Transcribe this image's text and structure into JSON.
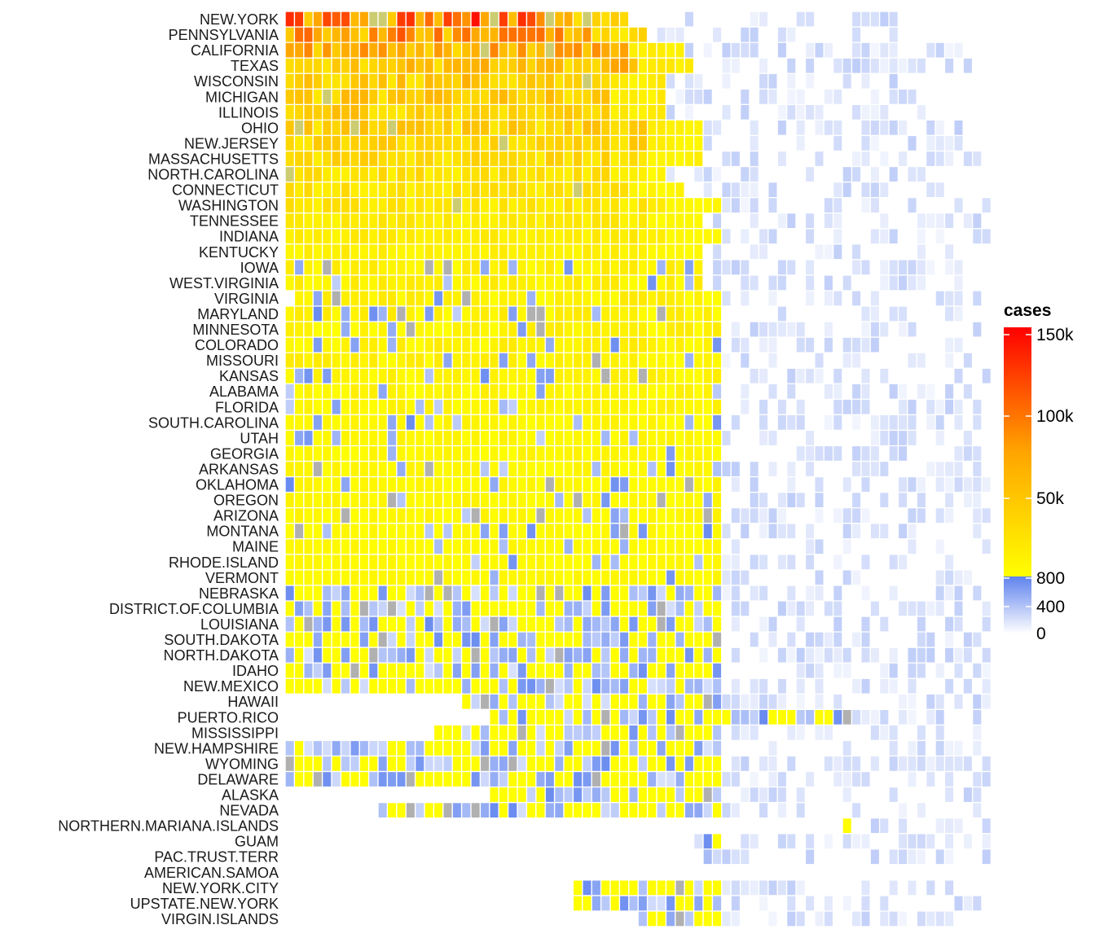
{
  "chart_data": {
    "type": "heatmap",
    "title": "",
    "xlabel": "",
    "ylabel": "",
    "grid": false,
    "legend_position": "right",
    "columns": 76,
    "colors": {
      "empty": "#ffffff",
      "zero": "#ffffff",
      "low": "#6a8cf0",
      "high_start": "#ffff00",
      "mid": "#ffa500",
      "high_end": "#ff0000",
      "grey": "#b0b0b0",
      "tile_border": "#ffffff"
    },
    "legend": {
      "title": "cases",
      "ticks": [
        {
          "label": "150k",
          "value": 150000
        },
        {
          "label": "100k",
          "value": 100000
        },
        {
          "label": "50k",
          "value": 50000
        },
        {
          "label": "800",
          "value": 800
        },
        {
          "label": "400",
          "value": 400
        },
        {
          "label": "0",
          "value": 0
        }
      ]
    },
    "rows": [
      {
        "state": "NEW.YORK",
        "start": 0,
        "end": 36,
        "level": 78
      },
      {
        "state": "PENNSYLVANIA",
        "start": 0,
        "end": 38,
        "level": 60
      },
      {
        "state": "CALIFORNIA",
        "start": 0,
        "end": 42,
        "level": 52
      },
      {
        "state": "TEXAS",
        "start": 0,
        "end": 43,
        "level": 42
      },
      {
        "state": "WISCONSIN",
        "start": 0,
        "end": 40,
        "level": 36
      },
      {
        "state": "MICHIGAN",
        "start": 0,
        "end": 40,
        "level": 34
      },
      {
        "state": "ILLINOIS",
        "start": 0,
        "end": 40,
        "level": 32
      },
      {
        "state": "OHIO",
        "start": 0,
        "end": 44,
        "level": 30
      },
      {
        "state": "NEW.JERSEY",
        "start": 0,
        "end": 44,
        "level": 26
      },
      {
        "state": "MASSACHUSETTS",
        "start": 0,
        "end": 44,
        "level": 24
      },
      {
        "state": "NORTH.CAROLINA",
        "start": 0,
        "end": 40,
        "level": 20
      },
      {
        "state": "CONNECTICUT",
        "start": 0,
        "end": 42,
        "level": 18
      },
      {
        "state": "WASHINGTON",
        "start": 0,
        "end": 46,
        "level": 16
      },
      {
        "state": "TENNESSEE",
        "start": 0,
        "end": 44,
        "level": 14
      },
      {
        "state": "INDIANA",
        "start": 0,
        "end": 46,
        "level": 12
      },
      {
        "state": "KENTUCKY",
        "start": 0,
        "end": 44,
        "level": 10
      },
      {
        "state": "IOWA",
        "start": 0,
        "end": 44,
        "level": 8
      },
      {
        "state": "WEST.VIRGINIA",
        "start": 0,
        "end": 44,
        "level": 8
      },
      {
        "state": "VIRGINIA",
        "start": 1,
        "end": 46,
        "level": 7
      },
      {
        "state": "MARYLAND",
        "start": 0,
        "end": 46,
        "level": 7
      },
      {
        "state": "MINNESOTA",
        "start": 0,
        "end": 46,
        "level": 6
      },
      {
        "state": "COLORADO",
        "start": 0,
        "end": 46,
        "level": 6
      },
      {
        "state": "MISSOURI",
        "start": 0,
        "end": 46,
        "level": 6
      },
      {
        "state": "KANSAS",
        "start": 0,
        "end": 46,
        "level": 5
      },
      {
        "state": "ALABAMA",
        "start": 0,
        "end": 46,
        "level": 5
      },
      {
        "state": "FLORIDA",
        "start": 0,
        "end": 46,
        "level": 5
      },
      {
        "state": "SOUTH.CAROLINA",
        "start": 0,
        "end": 46,
        "level": 4
      },
      {
        "state": "UTAH",
        "start": 0,
        "end": 46,
        "level": 4
      },
      {
        "state": "GEORGIA",
        "start": 0,
        "end": 46,
        "level": 4
      },
      {
        "state": "ARKANSAS",
        "start": 0,
        "end": 46,
        "level": 4
      },
      {
        "state": "OKLAHOMA",
        "start": 0,
        "end": 46,
        "level": 4
      },
      {
        "state": "OREGON",
        "start": 0,
        "end": 46,
        "level": 4
      },
      {
        "state": "ARIZONA",
        "start": 0,
        "end": 46,
        "level": 4
      },
      {
        "state": "MONTANA",
        "start": 0,
        "end": 46,
        "level": 3
      },
      {
        "state": "MAINE",
        "start": 0,
        "end": 46,
        "level": 3
      },
      {
        "state": "RHODE.ISLAND",
        "start": 0,
        "end": 46,
        "level": 3
      },
      {
        "state": "VERMONT",
        "start": 0,
        "end": 46,
        "level": 3
      },
      {
        "state": "NEBRASKA",
        "start": 0,
        "end": 46,
        "level": 2
      },
      {
        "state": "DISTRICT.OF.COLUMBIA",
        "start": 0,
        "end": 46,
        "level": 2
      },
      {
        "state": "LOUISIANA",
        "start": 0,
        "end": 46,
        "level": 2
      },
      {
        "state": "SOUTH.DAKOTA",
        "start": 0,
        "end": 46,
        "level": 2
      },
      {
        "state": "NORTH.DAKOTA",
        "start": 0,
        "end": 46,
        "level": 2
      },
      {
        "state": "IDAHO",
        "start": 0,
        "end": 46,
        "level": 2
      },
      {
        "state": "NEW.MEXICO",
        "start": 0,
        "end": 46,
        "level": 2
      },
      {
        "state": "HAWAII",
        "start": 19,
        "end": 46,
        "level": 2
      },
      {
        "state": "PUERTO.RICO",
        "start": 22,
        "end": 60,
        "level": 2
      },
      {
        "state": "MISSISSIPPI",
        "start": 16,
        "end": 46,
        "level": 2
      },
      {
        "state": "NEW.HAMPSHIRE",
        "start": 0,
        "end": 46,
        "level": 1
      },
      {
        "state": "WYOMING",
        "start": 0,
        "end": 46,
        "level": 1
      },
      {
        "state": "DELAWARE",
        "start": 0,
        "end": 46,
        "level": 1
      },
      {
        "state": "ALASKA",
        "start": 22,
        "end": 46,
        "level": 1
      },
      {
        "state": "NEVADA",
        "start": 10,
        "end": 46,
        "level": 0
      },
      {
        "state": "NORTHERN.MARIANA.ISLANDS",
        "start": 60,
        "end": 60,
        "level": 0
      },
      {
        "state": "GUAM",
        "start": 44,
        "end": 46,
        "level": 0
      },
      {
        "state": "PAC.TRUST.TERR",
        "start": 45,
        "end": 45,
        "level": 0
      },
      {
        "state": "AMERICAN.SAMOA",
        "start": 0,
        "end": -1,
        "level": 0
      },
      {
        "state": "NEW.YORK.CITY",
        "start": 31,
        "end": 46,
        "level": 2
      },
      {
        "state": "UPSTATE.NEW.YORK",
        "start": 31,
        "end": 46,
        "level": 1
      },
      {
        "state": "VIRGIN.ISLANDS",
        "start": 38,
        "end": 46,
        "level": 0
      }
    ]
  }
}
